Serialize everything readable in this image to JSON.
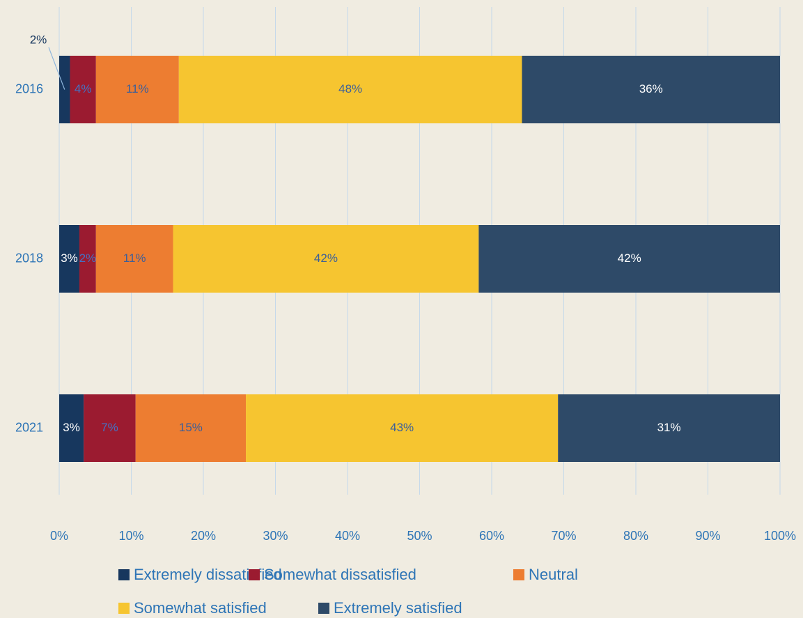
{
  "chart_data": {
    "type": "stacked_bar_horizontal",
    "categories": [
      "2016",
      "2018",
      "2021"
    ],
    "series": [
      {
        "name": "Extremely dissatisfied",
        "color": "#17375e",
        "label_color": "#ffffff",
        "values": [
          1.5,
          2.8,
          3.4
        ],
        "value_labels": [
          "2%",
          "3%",
          "3%"
        ]
      },
      {
        "name": "Somewhat dissatisfied",
        "color": "#9b1b30",
        "label_color": "#4472c4",
        "values": [
          3.6,
          2.3,
          7.2
        ],
        "value_labels": [
          "4%",
          "2%",
          "7%"
        ]
      },
      {
        "name": "Neutral",
        "color": "#ed7d31",
        "label_color": "#3b5f9a",
        "values": [
          11.5,
          10.7,
          15.3
        ],
        "value_labels": [
          "11%",
          "11%",
          "15%"
        ]
      },
      {
        "name": "Somewhat satisfied",
        "color": "#f6c530",
        "label_color": "#3b5f9a",
        "values": [
          47.6,
          42.4,
          43.3
        ],
        "value_labels": [
          "48%",
          "42%",
          "43%"
        ]
      },
      {
        "name": "Extremely satisfied",
        "color": "#2e4a68",
        "label_color": "#ffffff",
        "values": [
          35.8,
          41.8,
          30.8
        ],
        "value_labels": [
          "36%",
          "42%",
          "31%"
        ]
      }
    ],
    "xlim": [
      0,
      100
    ],
    "xticks": [
      {
        "value": 0,
        "label": "0%"
      },
      {
        "value": 10,
        "label": "10%"
      },
      {
        "value": 20,
        "label": "20%"
      },
      {
        "value": 30,
        "label": "30%"
      },
      {
        "value": 40,
        "label": "40%"
      },
      {
        "value": 50,
        "label": "50%"
      },
      {
        "value": 60,
        "label": "60%"
      },
      {
        "value": 70,
        "label": "70%"
      },
      {
        "value": 80,
        "label": "80%"
      },
      {
        "value": 90,
        "label": "90%"
      },
      {
        "value": 100,
        "label": "100%"
      }
    ],
    "grid": true,
    "legend": "bottom"
  }
}
